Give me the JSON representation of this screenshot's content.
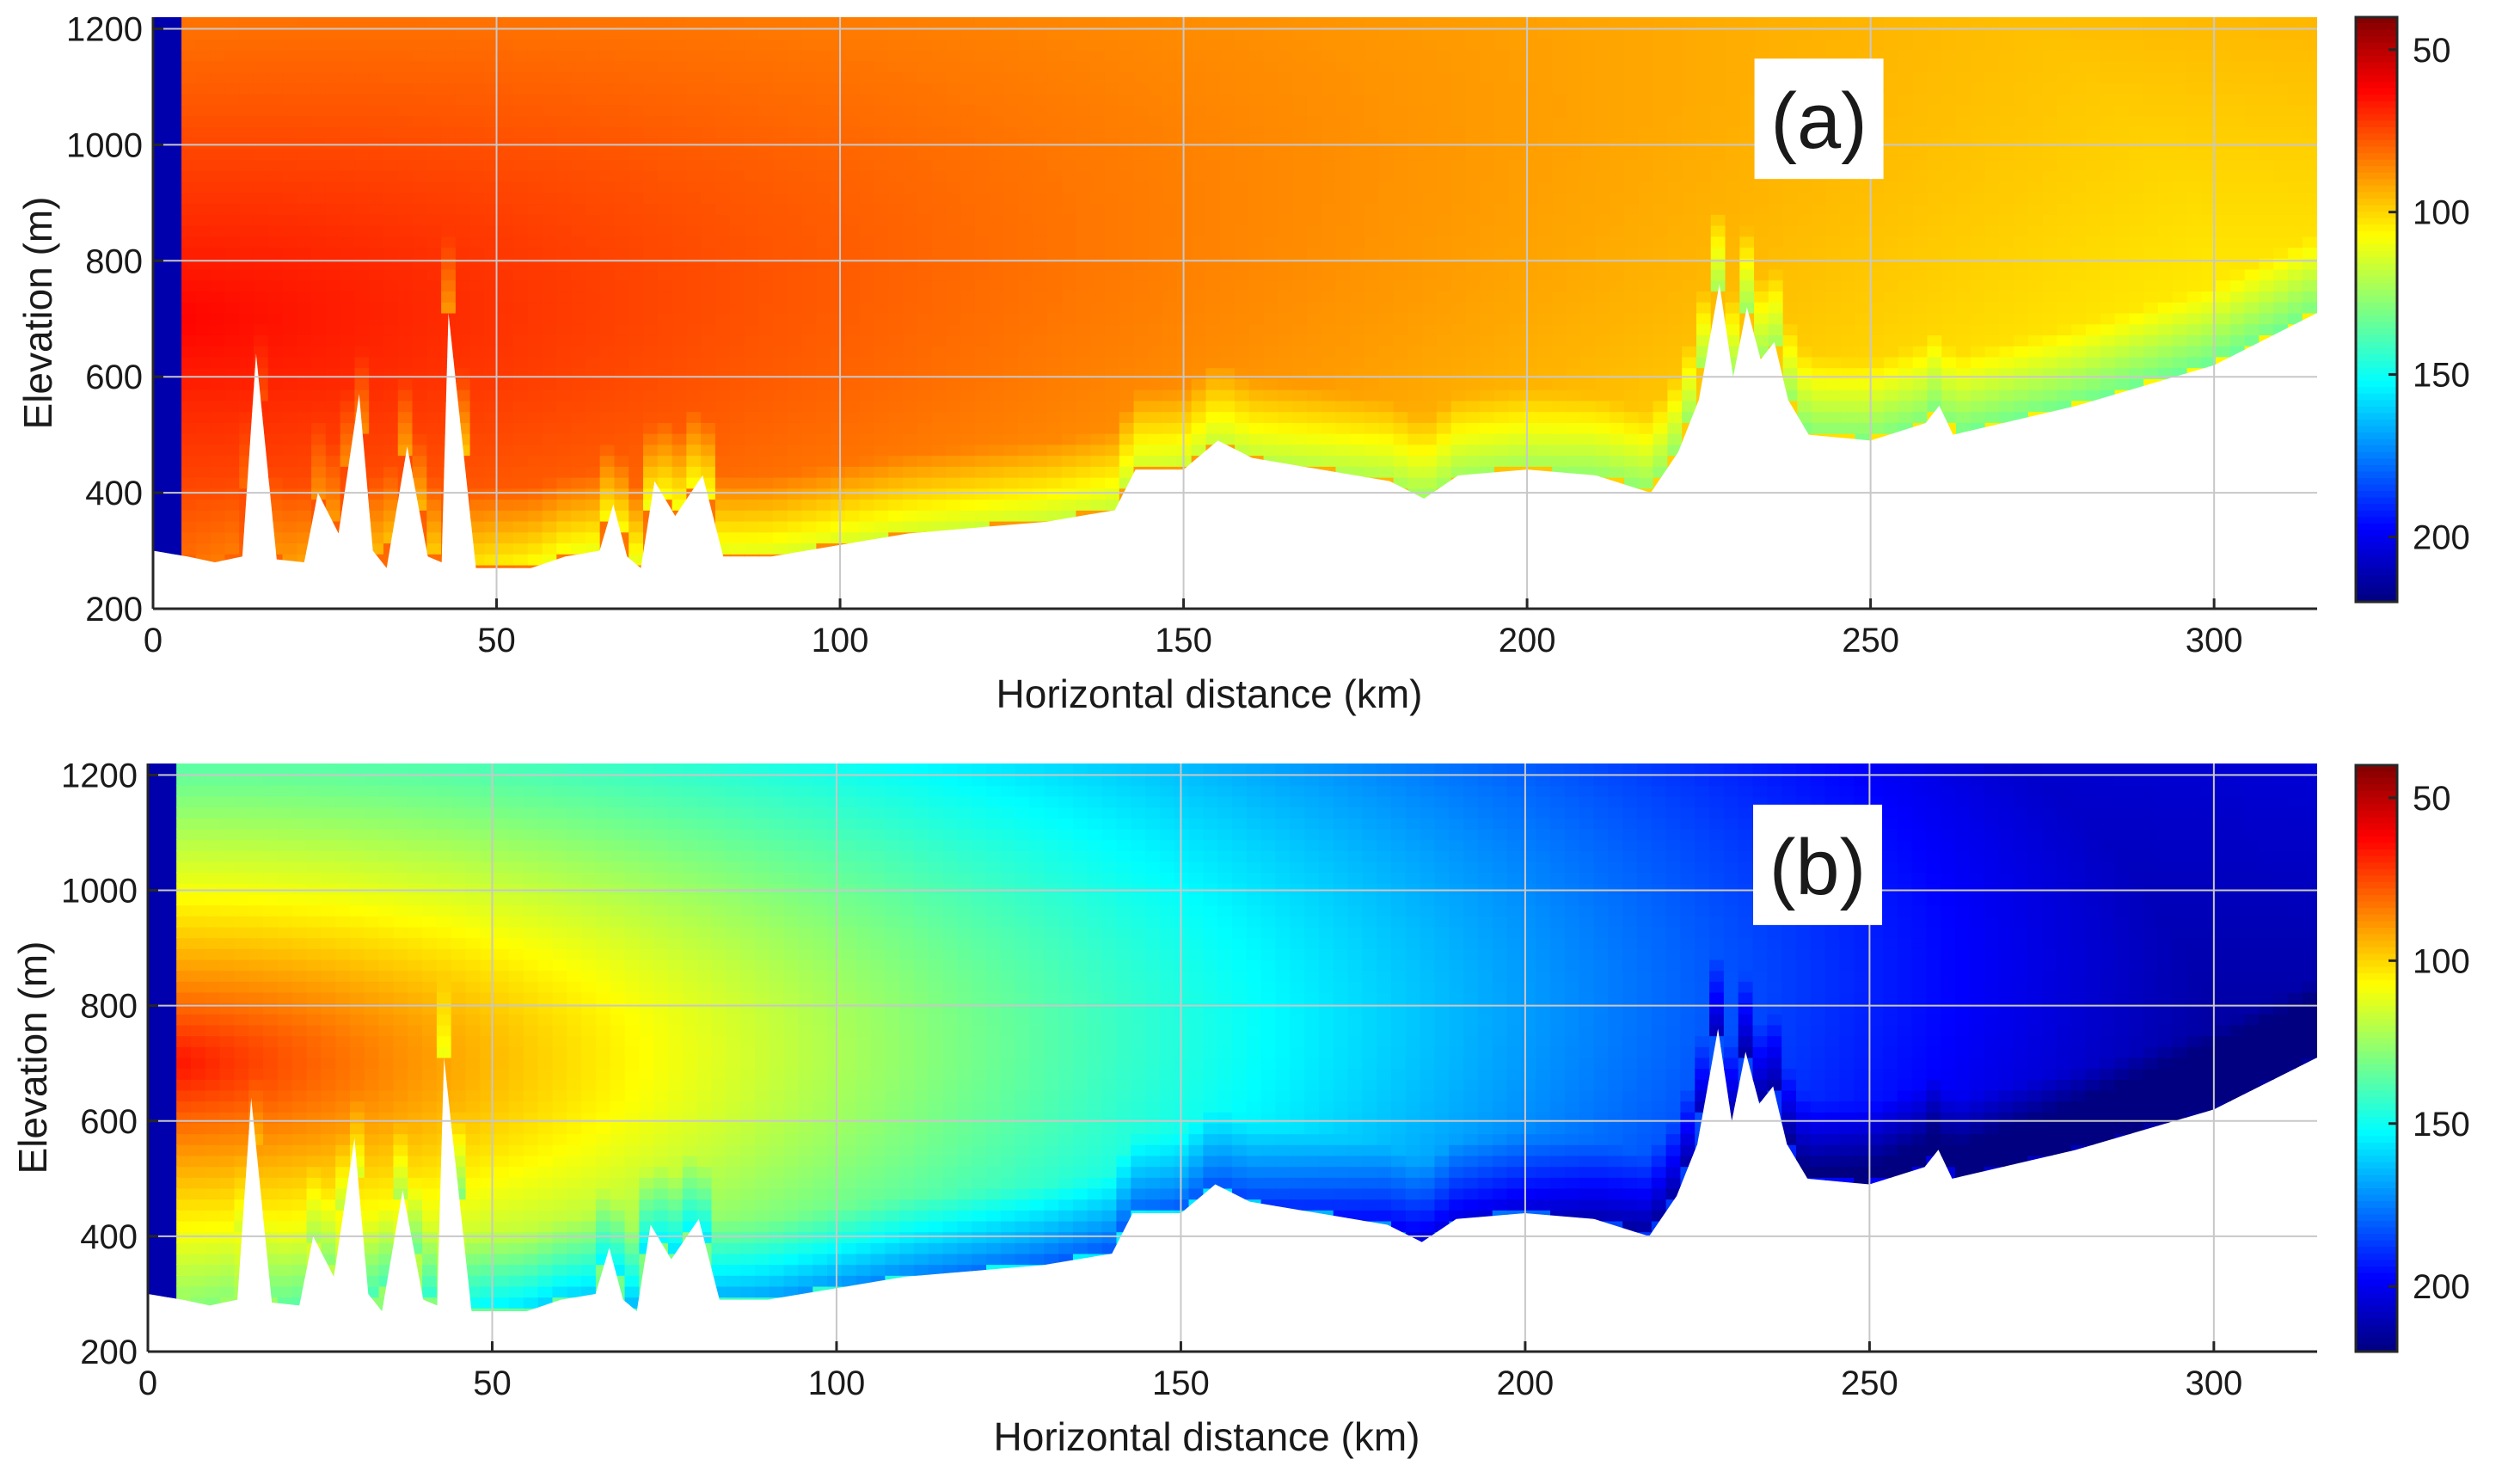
{
  "chart_data": [
    {
      "type": "heatmap",
      "panel_label": "(a)",
      "xlabel": "Horizontal distance (km)",
      "ylabel": "Elevation (m)",
      "xlim": [
        0,
        315
      ],
      "ylim": [
        200,
        1220
      ],
      "xticks": [
        0,
        50,
        100,
        150,
        200,
        250,
        300
      ],
      "yticks": [
        200,
        400,
        600,
        800,
        1000,
        1200
      ],
      "grid": true,
      "colorbar": {
        "range": [
          40,
          220
        ],
        "ticks": [
          50,
          100,
          150,
          200
        ],
        "colormap": "jet",
        "reversed": true
      },
      "source": {
        "x_km": 0,
        "elevation_m": 700
      },
      "far_field_value": 105,
      "terrain": [
        [
          0,
          300
        ],
        [
          5,
          290
        ],
        [
          9,
          280
        ],
        [
          13,
          290
        ],
        [
          15,
          640
        ],
        [
          18,
          285
        ],
        [
          22,
          280
        ],
        [
          24,
          400
        ],
        [
          27,
          330
        ],
        [
          30,
          570
        ],
        [
          32,
          300
        ],
        [
          34,
          270
        ],
        [
          37,
          480
        ],
        [
          40,
          290
        ],
        [
          42,
          280
        ],
        [
          43,
          710
        ],
        [
          47,
          270
        ],
        [
          55,
          270
        ],
        [
          60,
          290
        ],
        [
          65,
          300
        ],
        [
          67,
          380
        ],
        [
          69,
          290
        ],
        [
          71,
          270
        ],
        [
          73,
          420
        ],
        [
          76,
          360
        ],
        [
          80,
          430
        ],
        [
          83,
          290
        ],
        [
          90,
          290
        ],
        [
          100,
          310
        ],
        [
          110,
          330
        ],
        [
          120,
          340
        ],
        [
          130,
          350
        ],
        [
          140,
          370
        ],
        [
          143,
          440
        ],
        [
          150,
          440
        ],
        [
          155,
          490
        ],
        [
          160,
          460
        ],
        [
          170,
          440
        ],
        [
          180,
          420
        ],
        [
          185,
          390
        ],
        [
          190,
          430
        ],
        [
          200,
          440
        ],
        [
          210,
          430
        ],
        [
          218,
          400
        ],
        [
          222,
          470
        ],
        [
          225,
          560
        ],
        [
          228,
          760
        ],
        [
          230,
          600
        ],
        [
          232,
          720
        ],
        [
          234,
          630
        ],
        [
          236,
          660
        ],
        [
          238,
          560
        ],
        [
          241,
          500
        ],
        [
          250,
          490
        ],
        [
          258,
          520
        ],
        [
          260,
          550
        ],
        [
          262,
          500
        ],
        [
          280,
          550
        ],
        [
          300,
          620
        ],
        [
          315,
          710
        ]
      ]
    },
    {
      "type": "heatmap",
      "panel_label": "(b)",
      "xlabel": "Horizontal distance (km)",
      "ylabel": "Elevation (m)",
      "xlim": [
        0,
        315
      ],
      "ylim": [
        200,
        1220
      ],
      "xticks": [
        0,
        50,
        100,
        150,
        200,
        250,
        300
      ],
      "yticks": [
        200,
        400,
        600,
        800,
        1000,
        1200
      ],
      "grid": true,
      "colorbar": {
        "range": [
          40,
          220
        ],
        "ticks": [
          50,
          100,
          150,
          200
        ],
        "colormap": "jet",
        "reversed": true
      },
      "source": {
        "x_km": 0,
        "elevation_m": 700
      },
      "far_field_value": 215,
      "terrain": [
        [
          0,
          300
        ],
        [
          5,
          290
        ],
        [
          9,
          280
        ],
        [
          13,
          290
        ],
        [
          15,
          640
        ],
        [
          18,
          285
        ],
        [
          22,
          280
        ],
        [
          24,
          400
        ],
        [
          27,
          330
        ],
        [
          30,
          570
        ],
        [
          32,
          300
        ],
        [
          34,
          270
        ],
        [
          37,
          480
        ],
        [
          40,
          290
        ],
        [
          42,
          280
        ],
        [
          43,
          710
        ],
        [
          47,
          270
        ],
        [
          55,
          270
        ],
        [
          60,
          290
        ],
        [
          65,
          300
        ],
        [
          67,
          380
        ],
        [
          69,
          290
        ],
        [
          71,
          270
        ],
        [
          73,
          420
        ],
        [
          76,
          360
        ],
        [
          80,
          430
        ],
        [
          83,
          290
        ],
        [
          90,
          290
        ],
        [
          100,
          310
        ],
        [
          110,
          330
        ],
        [
          120,
          340
        ],
        [
          130,
          350
        ],
        [
          140,
          370
        ],
        [
          143,
          440
        ],
        [
          150,
          440
        ],
        [
          155,
          490
        ],
        [
          160,
          460
        ],
        [
          170,
          440
        ],
        [
          180,
          420
        ],
        [
          185,
          390
        ],
        [
          190,
          430
        ],
        [
          200,
          440
        ],
        [
          210,
          430
        ],
        [
          218,
          400
        ],
        [
          222,
          470
        ],
        [
          225,
          560
        ],
        [
          228,
          760
        ],
        [
          230,
          600
        ],
        [
          232,
          720
        ],
        [
          234,
          630
        ],
        [
          236,
          660
        ],
        [
          238,
          560
        ],
        [
          241,
          500
        ],
        [
          250,
          490
        ],
        [
          258,
          520
        ],
        [
          260,
          550
        ],
        [
          262,
          500
        ],
        [
          280,
          550
        ],
        [
          300,
          620
        ],
        [
          315,
          710
        ]
      ]
    }
  ]
}
